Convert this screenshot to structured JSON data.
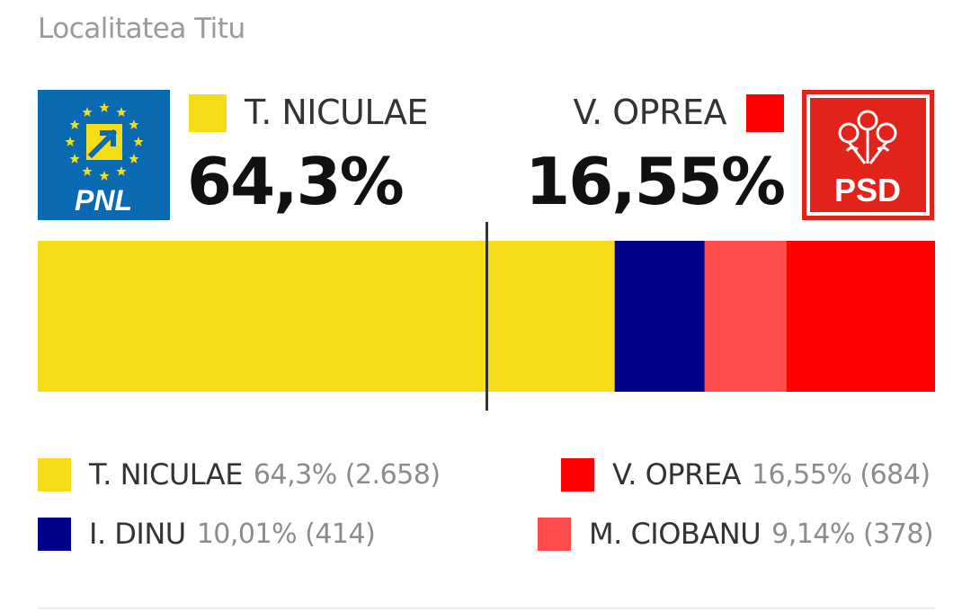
{
  "locality": "Localitatea Titu",
  "leader_left": {
    "name": "T. NICULAE",
    "pct": "64,3%",
    "color": "#f5dd1a",
    "logo_text": "PNL",
    "logo_icon": "pnl-logo-stars-arrow"
  },
  "leader_right": {
    "name": "V. OPREA",
    "pct": "16,55%",
    "color": "#ff0000",
    "logo_text": "PSD",
    "logo_icon": "psd-logo-roses"
  },
  "chart_data": {
    "type": "bar",
    "orientation": "horizontal-stacked",
    "categories": [
      "T. NICULAE",
      "I. DINU",
      "M. CIOBANU",
      "V. OPREA"
    ],
    "values": [
      64.3,
      10.01,
      9.14,
      16.55
    ],
    "votes": [
      2658,
      414,
      378,
      684
    ],
    "colors": [
      "#f5dd1a",
      "#00008b",
      "#ff4d4d",
      "#ff0000"
    ],
    "majority_marker": 50
  },
  "legend": [
    {
      "name": "T. NICULAE",
      "value": "64,3% (2.658)",
      "color": "#f5dd1a"
    },
    {
      "name": "V. OPREA",
      "value": "16,55% (684)",
      "color": "#ff0000"
    },
    {
      "name": "I. DINU",
      "value": "10,01% (414)",
      "color": "#00008b"
    },
    {
      "name": "M. CIOBANU",
      "value": "9,14% (378)",
      "color": "#ff4d4d"
    }
  ]
}
